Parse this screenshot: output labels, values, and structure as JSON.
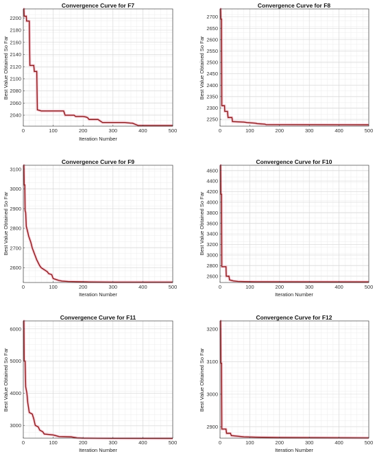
{
  "chart_data": [
    {
      "type": "line",
      "title": "Convergence Curve for F7",
      "xlabel": "Iteration Number",
      "ylabel": "Best Value Obtained So Far",
      "xlim": [
        0,
        500
      ],
      "ylim": [
        2022,
        2215
      ],
      "xticks": [
        0,
        100,
        200,
        300,
        400,
        500
      ],
      "yticks": [
        2040,
        2060,
        2080,
        2100,
        2120,
        2140,
        2160,
        2180,
        2200
      ],
      "grid": true,
      "color": "#8b1a1a",
      "x": [
        0,
        2,
        3,
        10,
        11,
        20,
        22,
        35,
        37,
        45,
        47,
        60,
        135,
        140,
        170,
        175,
        200,
        210,
        215,
        220,
        250,
        265,
        340,
        360,
        365,
        380,
        385,
        500
      ],
      "y": [
        2215,
        2215,
        2203,
        2203,
        2195,
        2195,
        2122,
        2122,
        2112,
        2112,
        2049,
        2047,
        2047,
        2040,
        2040,
        2038,
        2038,
        2037,
        2036,
        2033,
        2033,
        2028,
        2028,
        2027,
        2027,
        2024,
        2023,
        2023
      ]
    },
    {
      "type": "line",
      "title": "Convergence Curve for F8",
      "xlabel": "",
      "ylabel": "Best Value Obtained So Far",
      "xlim": [
        0,
        500
      ],
      "ylim": [
        2220,
        2735
      ],
      "xticks": [
        0,
        100,
        200,
        300,
        400,
        500
      ],
      "yticks": [
        2250,
        2300,
        2350,
        2400,
        2450,
        2500,
        2550,
        2600,
        2650,
        2700
      ],
      "grid": true,
      "color": "#8b1a1a",
      "x": [
        0,
        2,
        3,
        5,
        6,
        15,
        16,
        25,
        27,
        40,
        42,
        80,
        90,
        120,
        125,
        150,
        155,
        500
      ],
      "y": [
        2735,
        2735,
        2690,
        2690,
        2310,
        2310,
        2285,
        2285,
        2258,
        2258,
        2240,
        2238,
        2236,
        2233,
        2231,
        2229,
        2227,
        2226
      ]
    },
    {
      "type": "line",
      "title": "Convergence Curve for F9",
      "xlabel": "Iteration Number",
      "ylabel": "Best Value Obtained So Far",
      "xlim": [
        0,
        500
      ],
      "ylim": [
        2525,
        3120
      ],
      "xticks": [
        0,
        100,
        200,
        300,
        400,
        500
      ],
      "yticks": [
        2600,
        2700,
        2800,
        2900,
        3000,
        3100
      ],
      "grid": true,
      "color": "#8b1a1a",
      "x": [
        0,
        2,
        3,
        5,
        6,
        8,
        10,
        15,
        18,
        25,
        30,
        35,
        40,
        45,
        50,
        55,
        60,
        65,
        70,
        80,
        85,
        95,
        100,
        110,
        120,
        130,
        150,
        180,
        220,
        300,
        500
      ],
      "y": [
        3120,
        3120,
        3020,
        3020,
        2890,
        2880,
        2810,
        2780,
        2760,
        2730,
        2700,
        2680,
        2660,
        2640,
        2625,
        2610,
        2600,
        2595,
        2590,
        2580,
        2570,
        2565,
        2545,
        2540,
        2535,
        2532,
        2530,
        2529,
        2528,
        2527,
        2527
      ]
    },
    {
      "type": "line",
      "title": "Convergence Curve for F10",
      "xlabel": "Iteration Number",
      "ylabel": "Best Value Obtained So Far",
      "xlim": [
        0,
        500
      ],
      "ylim": [
        2480,
        4700
      ],
      "xticks": [
        0,
        100,
        200,
        300,
        400,
        500
      ],
      "yticks": [
        2600,
        2800,
        3000,
        3200,
        3400,
        3600,
        3800,
        4000,
        4200,
        4400,
        4600
      ],
      "grid": true,
      "color": "#8b1a1a",
      "x": [
        0,
        2,
        3,
        5,
        6,
        20,
        21,
        30,
        32,
        45,
        60,
        80,
        120,
        500
      ],
      "y": [
        4700,
        4700,
        4150,
        4150,
        2780,
        2780,
        2600,
        2600,
        2530,
        2510,
        2500,
        2497,
        2494,
        2492
      ]
    },
    {
      "type": "line",
      "title": "Convergence Curve for F11",
      "xlabel": "Iteration Number",
      "ylabel": "Best Value Obtained So Far",
      "xlim": [
        0,
        500
      ],
      "ylim": [
        2600,
        6250
      ],
      "xticks": [
        0,
        100,
        200,
        300,
        400,
        500
      ],
      "yticks": [
        3000,
        4000,
        5000,
        6000
      ],
      "grid": true,
      "color": "#8b1a1a",
      "x": [
        0,
        2,
        3,
        6,
        8,
        12,
        15,
        20,
        30,
        35,
        40,
        50,
        55,
        65,
        70,
        100,
        120,
        160,
        180,
        200,
        250,
        300,
        500
      ],
      "y": [
        6250,
        6250,
        5000,
        5000,
        4200,
        4000,
        3700,
        3400,
        3350,
        3200,
        3000,
        2950,
        2850,
        2800,
        2730,
        2700,
        2650,
        2640,
        2610,
        2600,
        2595,
        2593,
        2592
      ]
    },
    {
      "type": "line",
      "title": "Convergence Curve for F12",
      "xlabel": "Iteration Number",
      "ylabel": "Best Value Obtained So Far",
      "xlim": [
        0,
        500
      ],
      "ylim": [
        2865,
        3225
      ],
      "xticks": [
        0,
        100,
        200,
        300,
        400,
        500
      ],
      "yticks": [
        2900,
        3000,
        3100,
        3200
      ],
      "grid": true,
      "color": "#8b1a1a",
      "x": [
        0,
        2,
        3,
        5,
        6,
        20,
        22,
        35,
        38,
        60,
        80,
        120,
        200,
        500
      ],
      "y": [
        3225,
        3225,
        3095,
        3095,
        2893,
        2893,
        2880,
        2880,
        2873,
        2871,
        2869,
        2868,
        2867,
        2866
      ]
    }
  ]
}
